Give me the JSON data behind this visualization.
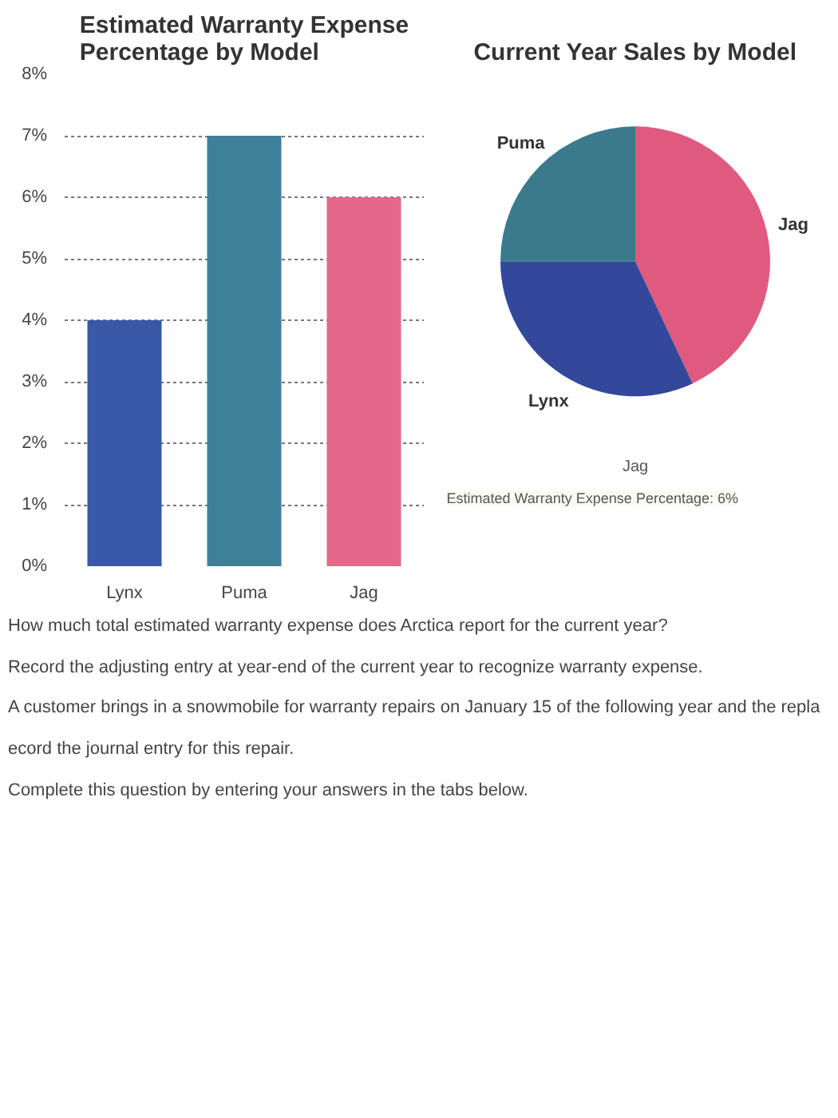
{
  "chart_data": [
    {
      "type": "bar",
      "title": "Estimated Warranty Expense\nPercentage by Model",
      "categories": [
        "Lynx",
        "Puma",
        "Jag"
      ],
      "values": [
        4,
        7,
        6
      ],
      "colors": [
        "#3a58a8",
        "#3d8098",
        "#e2698a"
      ],
      "ylim": [
        0,
        8
      ],
      "yticks": [
        {
          "value": 0,
          "label": "0%"
        },
        {
          "value": 1,
          "label": "1%"
        },
        {
          "value": 2,
          "label": "2%"
        },
        {
          "value": 3,
          "label": "3%"
        },
        {
          "value": 4,
          "label": "4%"
        },
        {
          "value": 5,
          "label": "5%"
        },
        {
          "value": 6,
          "label": "6%"
        },
        {
          "value": 7,
          "label": "7%"
        },
        {
          "value": 8,
          "label": "8%"
        }
      ],
      "grid": "y",
      "annotations": [
        "How much total estimated warranty expense does Arctica report for the current year?",
        "Record the adjusting entry at year-end of the current year to recognize warranty expense.",
        "A customer brings in a snowmobile for warranty repairs on January 15 of the following year and the repla",
        "ecord the journal entry for this repair.",
        "Complete this question by entering your answers in the tabs below."
      ]
    },
    {
      "type": "pie",
      "title": "Current Year Sales by Model",
      "categories": [
        "Jag",
        "Lynx",
        "Puma"
      ],
      "values": [
        43,
        32,
        25
      ],
      "colors": [
        "#e05a80",
        "#33489a",
        "#3a7a8c"
      ],
      "annotations": [
        "Jag",
        "Estimated Warranty Expense Percentage: 6%"
      ]
    }
  ]
}
